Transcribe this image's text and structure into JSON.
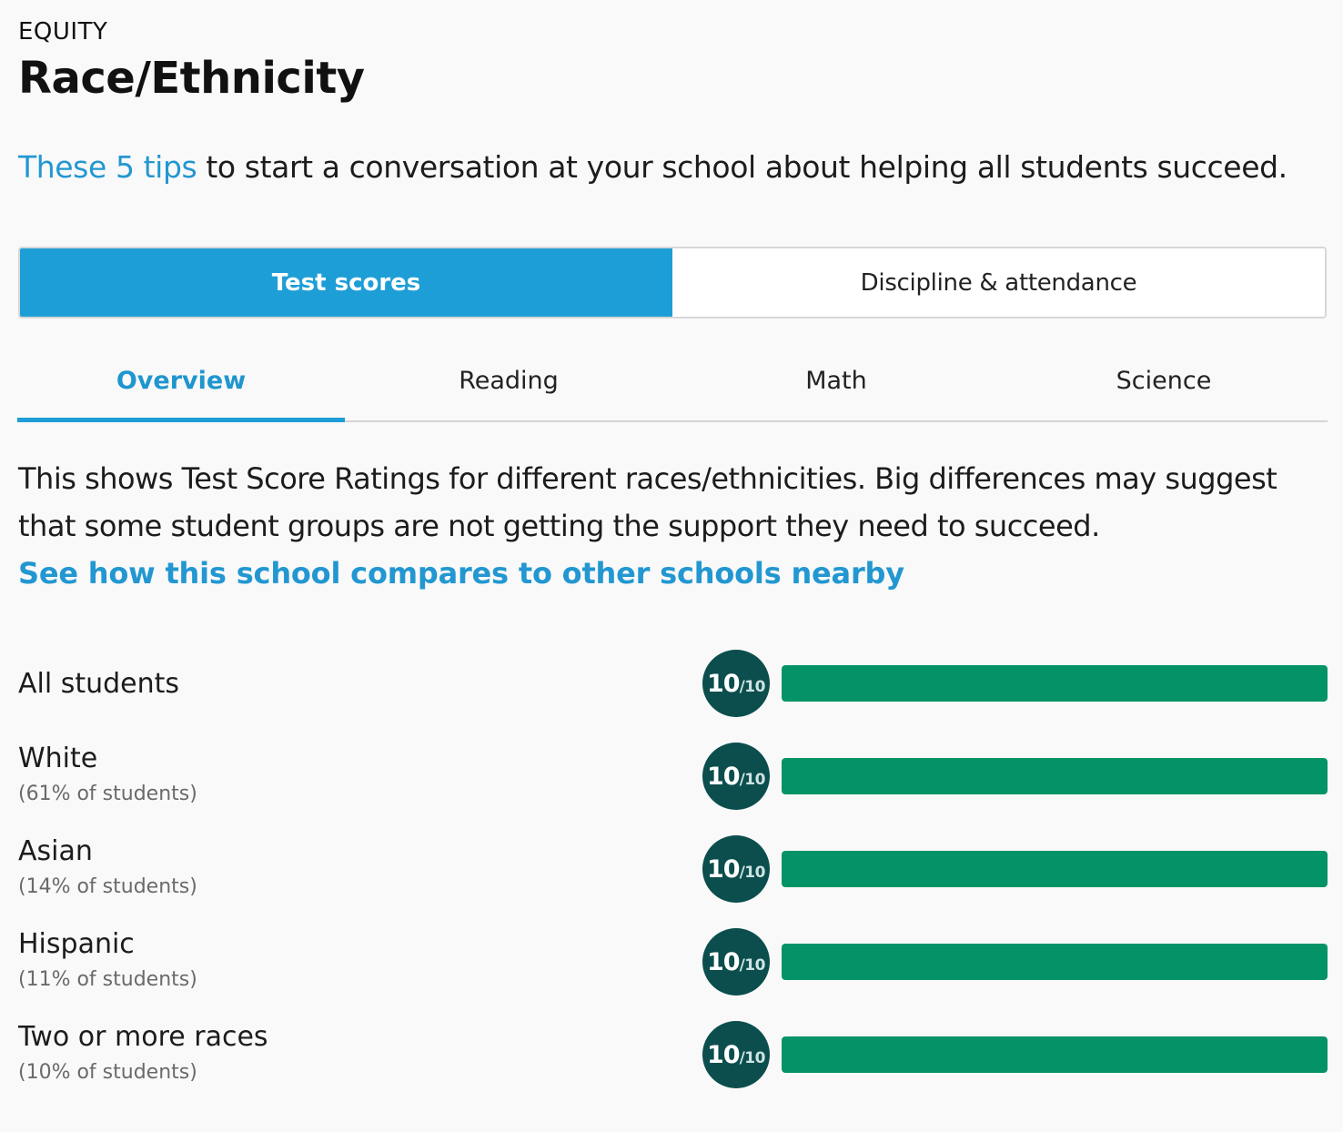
{
  "header": {
    "eyebrow": "EQUITY",
    "title": "Race/Ethnicity"
  },
  "tips": {
    "link": "These 5 tips",
    "rest": " to start a conversation at your school about helping all students succeed."
  },
  "segments": [
    {
      "label": "Test scores",
      "active": true
    },
    {
      "label": "Discipline & attendance",
      "active": false
    }
  ],
  "tabs": [
    {
      "label": "Overview",
      "active": true
    },
    {
      "label": "Reading",
      "active": false
    },
    {
      "label": "Math",
      "active": false
    },
    {
      "label": "Science",
      "active": false
    }
  ],
  "description": {
    "text": "This shows Test Score Ratings for different races/ethnicities. Big differences may suggest that some student groups are not getting the support they need to succeed.",
    "link": "See how this school compares to other schools nearby"
  },
  "colors": {
    "accent": "#1e9ed6",
    "badge": "#0b4e4d",
    "bar": "#039366"
  },
  "ratings": [
    {
      "group": "All students",
      "share": "",
      "score": "10",
      "out_of": "/10",
      "fraction": 1.0
    },
    {
      "group": "White",
      "share": "(61% of students)",
      "score": "10",
      "out_of": "/10",
      "fraction": 1.0
    },
    {
      "group": "Asian",
      "share": "(14% of students)",
      "score": "10",
      "out_of": "/10",
      "fraction": 1.0
    },
    {
      "group": "Hispanic",
      "share": "(11% of students)",
      "score": "10",
      "out_of": "/10",
      "fraction": 1.0
    },
    {
      "group": "Two or more races",
      "share": "(10% of students)",
      "score": "10",
      "out_of": "/10",
      "fraction": 1.0
    }
  ]
}
